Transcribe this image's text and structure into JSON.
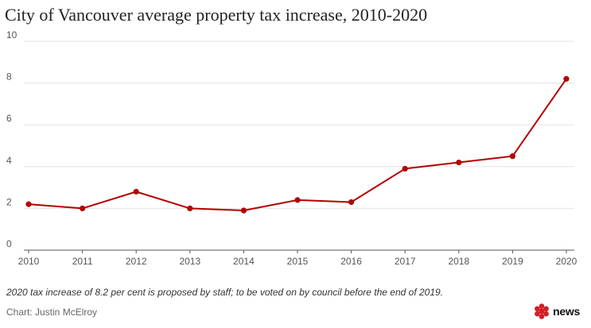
{
  "chart_data": {
    "type": "line",
    "title": "City of Vancouver average property tax increase, 2010-2020",
    "xlabel": "",
    "ylabel": "",
    "x": [
      "2010",
      "2011",
      "2012",
      "2013",
      "2014",
      "2015",
      "2016",
      "2017",
      "2018",
      "2019",
      "2020"
    ],
    "series": [
      {
        "name": "Average property tax increase (%)",
        "values": [
          2.2,
          2.0,
          2.8,
          2.0,
          1.9,
          2.4,
          2.3,
          3.9,
          4.2,
          4.5,
          8.2
        ]
      }
    ],
    "ylim": [
      0,
      10
    ],
    "yticks": [
      "0",
      "2",
      "4",
      "6",
      "8",
      "10"
    ],
    "grid": true,
    "legend": "none",
    "line_color": "#b30000"
  },
  "footer": {
    "note": "2020 tax increase of 8.2 per cent is proposed by staff; to be voted on by council before the end of 2019.",
    "credit": "Chart: Justin McElroy",
    "brand": {
      "icon": "cbc-gem-icon",
      "label": "news",
      "color": "#d11f25"
    }
  }
}
